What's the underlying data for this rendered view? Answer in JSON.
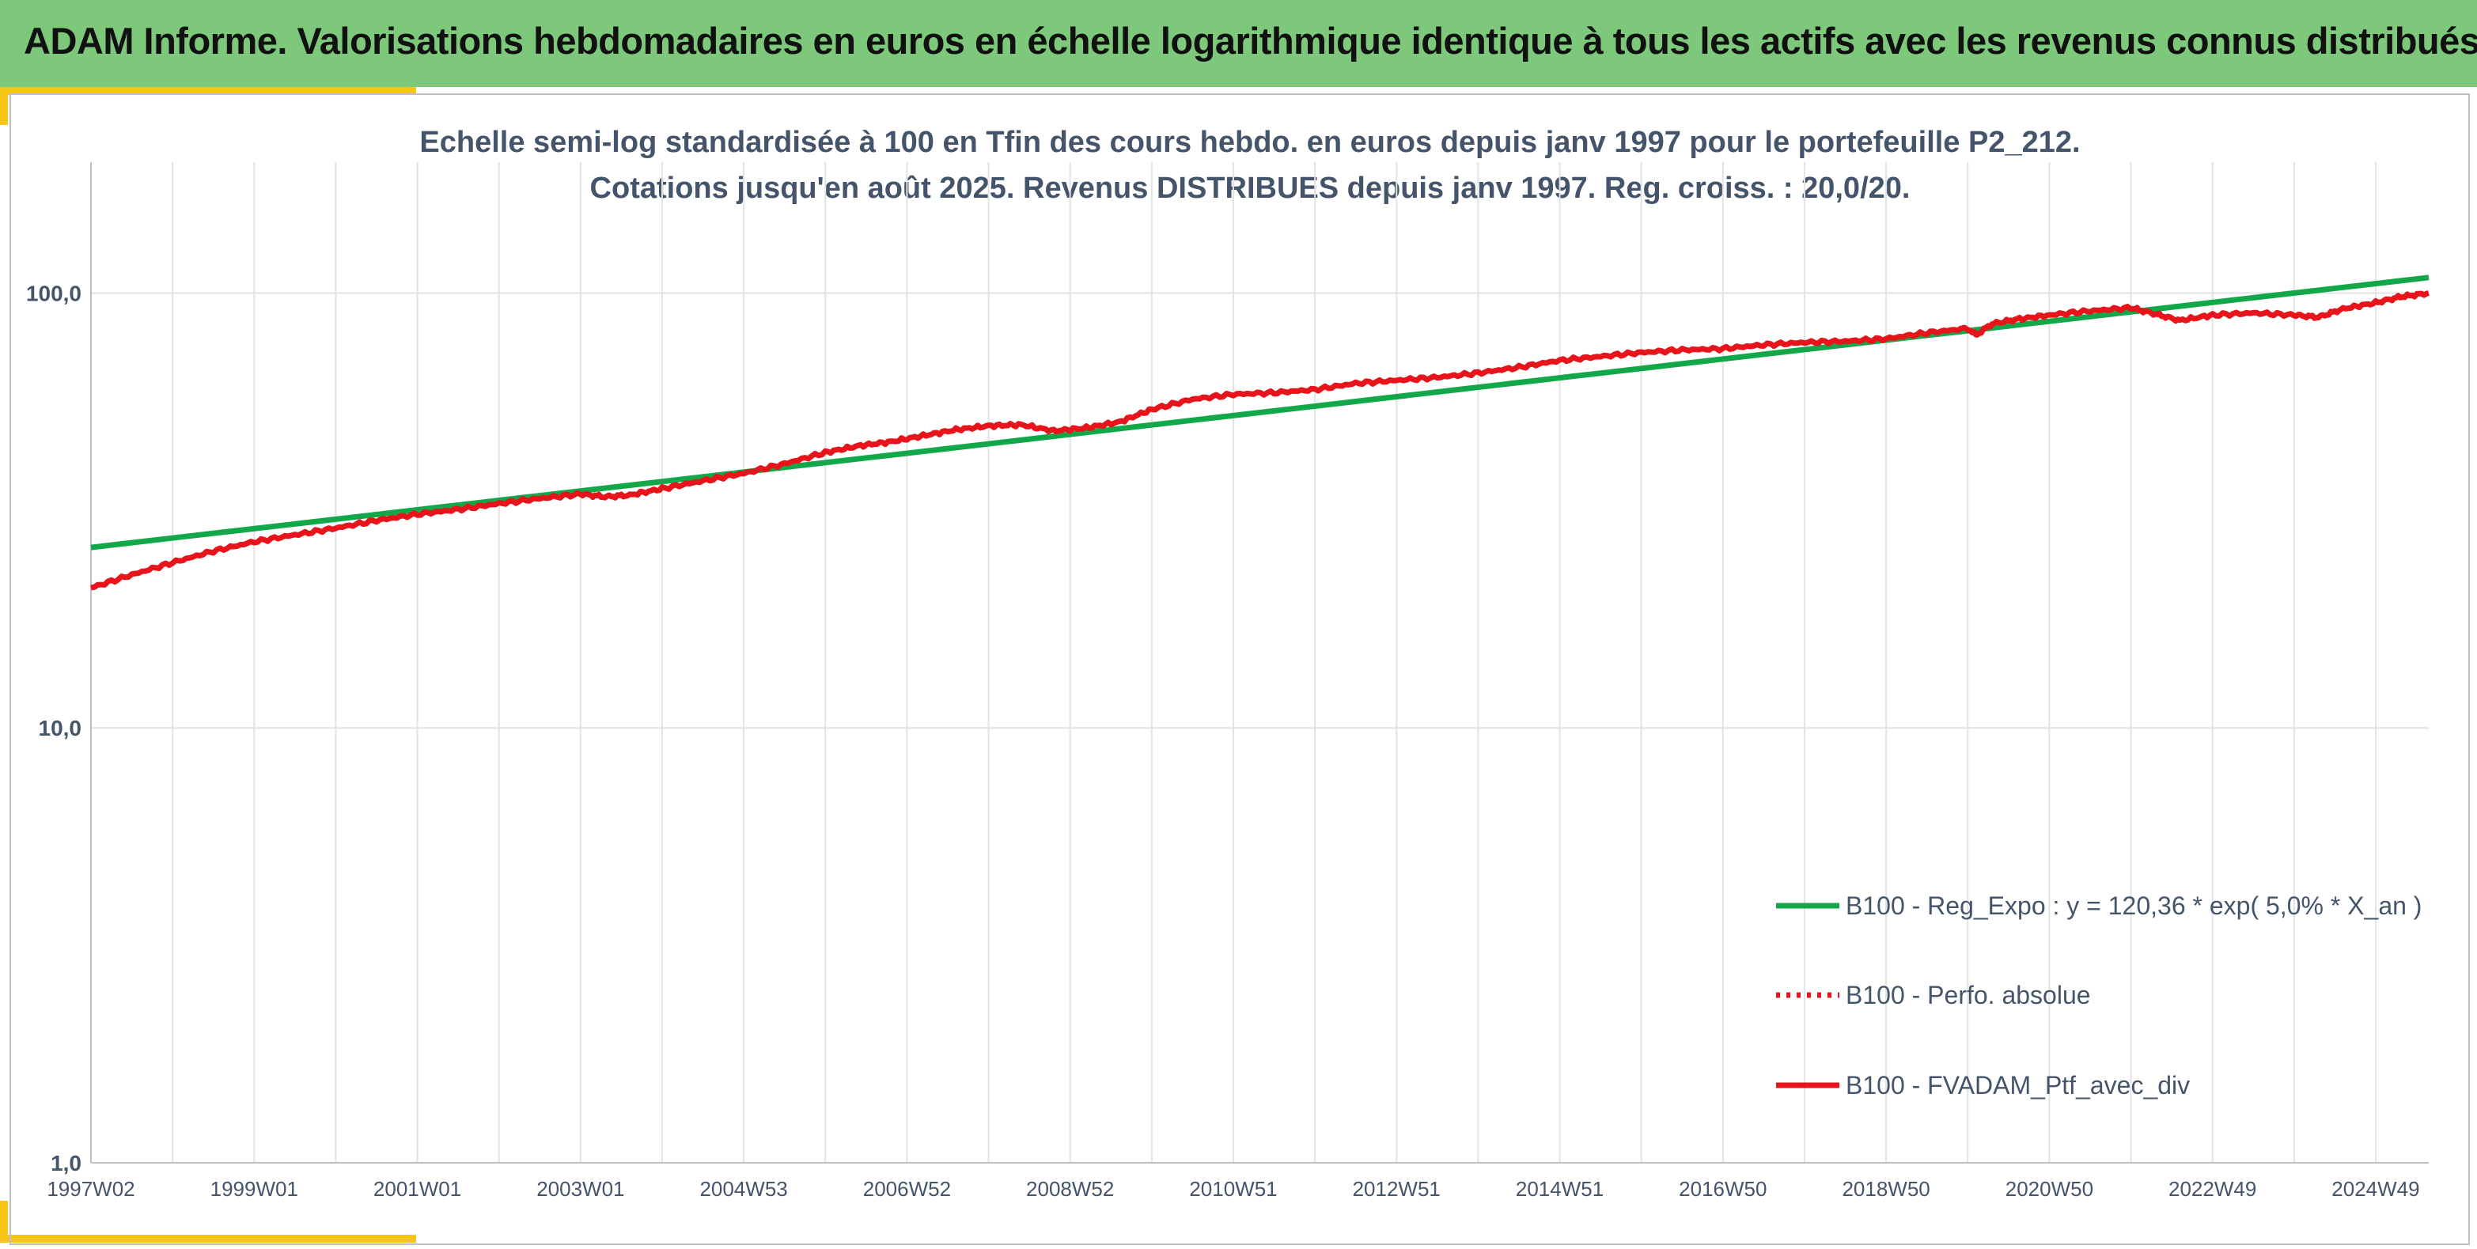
{
  "header": {
    "title": "ADAM Informe. Valorisations hebdomadaires en euros en échelle logarithmique identique à tous les actifs avec les revenus connus distribués"
  },
  "chart_data": {
    "type": "line",
    "title_line1": "Echelle semi-log standardisée à 100 en Tfin des cours hebdo. en euros depuis janv 1997 pour le portefeuille P2_212.",
    "title_line2": "Cotations jusqu'en août 2025. Revenus DISTRIBUES depuis janv 1997. Reg. croiss. : 20,0/20.",
    "y_scale": "log",
    "ylim": [
      1,
      200
    ],
    "yticks": [
      {
        "value": 100,
        "label": "100,0"
      },
      {
        "value": 10,
        "label": "10,0"
      },
      {
        "value": 1,
        "label": "1,0"
      }
    ],
    "xlim": [
      1997.0,
      2025.65
    ],
    "xticks": [
      {
        "value": 1997.0,
        "label": "1997W02"
      },
      {
        "value": 1999.0,
        "label": "1999W01"
      },
      {
        "value": 2001.0,
        "label": "2001W01"
      },
      {
        "value": 2003.0,
        "label": "2003W01"
      },
      {
        "value": 2005.0,
        "label": "2004W53"
      },
      {
        "value": 2007.0,
        "label": "2006W52"
      },
      {
        "value": 2009.0,
        "label": "2008W52"
      },
      {
        "value": 2011.0,
        "label": "2010W51"
      },
      {
        "value": 2013.0,
        "label": "2012W51"
      },
      {
        "value": 2015.0,
        "label": "2014W51"
      },
      {
        "value": 2017.0,
        "label": "2016W50"
      },
      {
        "value": 2019.0,
        "label": "2018W50"
      },
      {
        "value": 2021.0,
        "label": "2020W50"
      },
      {
        "value": 2023.0,
        "label": "2022W49"
      },
      {
        "value": 2025.0,
        "label": "2024W49"
      }
    ],
    "grid": "vertical and horizontal",
    "legend_position": "bottom-right",
    "series": [
      {
        "name": "B100 - Reg_Expo : y = 120,36 * exp( 5,0% *  X_an )",
        "color": "#12a84a",
        "style": "solid",
        "x": [
          1997.0,
          2025.65
        ],
        "values": [
          26.0,
          108.6
        ]
      },
      {
        "name": "B100 - Perfo. absolue",
        "color": "#e8141b",
        "style": "dotted",
        "x": [],
        "values": []
      },
      {
        "name": "B100 - FVADAM_Ptf_avec_div",
        "color": "#e8141b",
        "style": "solid",
        "x": [
          1997.0,
          1997.5,
          1998.0,
          1998.5,
          1999.0,
          1999.5,
          2000.0,
          2000.5,
          2001.0,
          2001.5,
          2002.0,
          2002.5,
          2003.0,
          2003.3,
          2003.6,
          2004.0,
          2004.5,
          2005.0,
          2005.5,
          2006.0,
          2006.4,
          2006.8,
          2007.2,
          2007.6,
          2008.0,
          2008.4,
          2008.8,
          2009.2,
          2009.6,
          2010.0,
          2010.5,
          2011.0,
          2011.5,
          2012.0,
          2012.5,
          2013.0,
          2013.5,
          2014.0,
          2014.5,
          2015.0,
          2015.5,
          2016.0,
          2016.5,
          2017.0,
          2017.5,
          2018.0,
          2018.5,
          2019.0,
          2019.5,
          2020.0,
          2020.1,
          2020.3,
          2020.6,
          2021.0,
          2021.5,
          2022.0,
          2022.3,
          2022.6,
          2023.0,
          2023.5,
          2024.0,
          2024.3,
          2024.6,
          2025.0,
          2025.3,
          2025.65
        ],
        "values": [
          21.0,
          22.5,
          24.0,
          25.5,
          26.8,
          27.8,
          28.8,
          30.0,
          31.0,
          31.8,
          32.8,
          33.7,
          34.5,
          34.0,
          34.3,
          35.5,
          37.0,
          38.5,
          40.5,
          43.0,
          44.5,
          45.5,
          47.0,
          48.5,
          49.5,
          49.8,
          48.2,
          49.0,
          50.5,
          54.0,
          57.0,
          58.5,
          59.0,
          60.0,
          62.0,
          63.0,
          64.0,
          65.5,
          67.5,
          70.0,
          71.5,
          73.0,
          74.0,
          74.5,
          76.0,
          77.0,
          77.5,
          78.5,
          81.0,
          83.0,
          80.0,
          85.0,
          87.0,
          89.0,
          91.0,
          92.5,
          89.5,
          86.5,
          89.0,
          90.0,
          89.0,
          88.0,
          92.0,
          95.0,
          98.0,
          100.0
        ]
      }
    ]
  }
}
